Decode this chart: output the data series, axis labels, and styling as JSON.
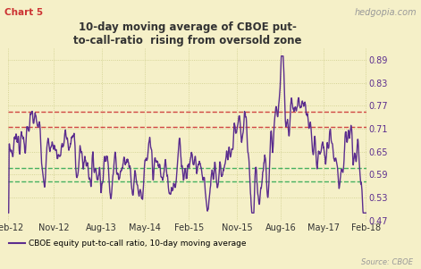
{
  "title": "10-day moving average of CBOE put-\nto-call-ratio  rising from oversold zone",
  "chart_label": "Chart 5",
  "watermark": "hedgopia.com",
  "source_text": "Source: CBOE",
  "legend_label": "CBOE equity put-to-call ratio, 10-day moving average",
  "xlabel_ticks": [
    "Feb-12",
    "Nov-12",
    "Aug-13",
    "May-14",
    "Feb-15",
    "Nov-15",
    "Aug-16",
    "May-17",
    "Feb-18"
  ],
  "ylim": [
    0.47,
    0.92
  ],
  "yticks": [
    0.47,
    0.53,
    0.59,
    0.65,
    0.71,
    0.77,
    0.83,
    0.89
  ],
  "red_line1": 0.755,
  "red_line2": 0.715,
  "green_line1": 0.607,
  "green_line2": 0.572,
  "line_color": "#5b2d8e",
  "red_color": "#cc3333",
  "green_color": "#33aa55",
  "bg_color": "#f5f0c8",
  "title_color": "#333333",
  "chart_label_color": "#cc3333",
  "watermark_color": "#999999",
  "n_points": 1500,
  "line_width": 1.0
}
